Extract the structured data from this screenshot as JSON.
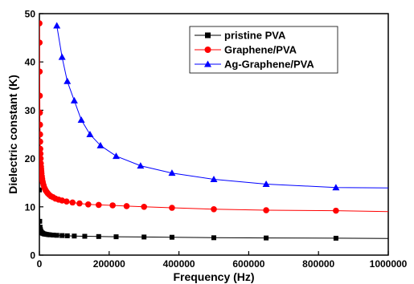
{
  "chart_data": {
    "type": "scatter",
    "xlabel": "Frequency (Hz)",
    "ylabel": "Dielectric constant (K)",
    "xlim": [
      0,
      1000000
    ],
    "ylim": [
      0,
      50
    ],
    "x_ticks": [
      {
        "value": 0,
        "label": "0"
      },
      {
        "value": 200000,
        "label": "200000"
      },
      {
        "value": 400000,
        "label": "400000"
      },
      {
        "value": 600000,
        "label": "600000"
      },
      {
        "value": 800000,
        "label": "800000"
      },
      {
        "value": 1000000,
        "label": "1000000"
      }
    ],
    "y_ticks": [
      {
        "value": 0,
        "label": "0"
      },
      {
        "value": 10,
        "label": "10"
      },
      {
        "value": 20,
        "label": "20"
      },
      {
        "value": 30,
        "label": "30"
      },
      {
        "value": 40,
        "label": "40"
      },
      {
        "value": 50,
        "label": "50"
      }
    ],
    "grid": false,
    "legend_position": "top-right",
    "series": [
      {
        "name": "pristine PVA",
        "color": "#000000",
        "marker": "square",
        "x": [
          100,
          1000,
          2000,
          3000,
          4000,
          5000,
          6000,
          8000,
          10000,
          13000,
          16000,
          20000,
          25000,
          30000,
          40000,
          50000,
          65000,
          80000,
          100000,
          130000,
          170000,
          220000,
          300000,
          380000,
          500000,
          650000,
          850000
        ],
        "y": [
          13.5,
          7.0,
          5.8,
          5.3,
          5.0,
          4.8,
          4.7,
          4.6,
          4.5,
          4.4,
          4.35,
          4.3,
          4.25,
          4.2,
          4.15,
          4.1,
          4.05,
          4.0,
          3.95,
          3.9,
          3.85,
          3.8,
          3.75,
          3.7,
          3.6,
          3.55,
          3.5
        ],
        "curve_y_at_xmax": 3.45
      },
      {
        "name": "Graphene/PVA",
        "color": "#ff0000",
        "marker": "circle",
        "x": [
          200,
          500,
          800,
          1100,
          1400,
          1700,
          2000,
          2300,
          2600,
          3000,
          3500,
          4000,
          4500,
          5000,
          5500,
          6000,
          7000,
          8000,
          9000,
          10000,
          12000,
          14000,
          16000,
          18000,
          21000,
          24000,
          28000,
          33000,
          39000,
          46000,
          55000,
          65000,
          78000,
          95000,
          115000,
          140000,
          170000,
          210000,
          250000,
          300000,
          380000,
          500000,
          650000,
          850000
        ],
        "y": [
          48,
          44,
          38,
          33,
          29.5,
          27,
          25,
          23.5,
          22,
          21,
          20,
          19,
          18.3,
          17.8,
          17.3,
          16.9,
          16.3,
          15.8,
          15.3,
          15.0,
          14.5,
          14.0,
          13.7,
          13.4,
          13.1,
          12.8,
          12.5,
          12.2,
          12.0,
          11.7,
          11.5,
          11.3,
          11.1,
          10.9,
          10.7,
          10.5,
          10.4,
          10.3,
          10.15,
          10.0,
          9.8,
          9.5,
          9.3,
          9.2
        ],
        "curve_y_at_xmax": 9.0
      },
      {
        "name": "Ag-Graphene/PVA",
        "color": "#0000ff",
        "marker": "triangle",
        "x": [
          50000,
          65000,
          80000,
          100000,
          120000,
          145000,
          175000,
          220000,
          290000,
          380000,
          500000,
          650000,
          850000
        ],
        "y": [
          47.5,
          41,
          36,
          32,
          28,
          25,
          22.7,
          20.5,
          18.5,
          17,
          15.7,
          14.7,
          14.0
        ],
        "curve_y_at_xmax": 13.9
      }
    ]
  }
}
